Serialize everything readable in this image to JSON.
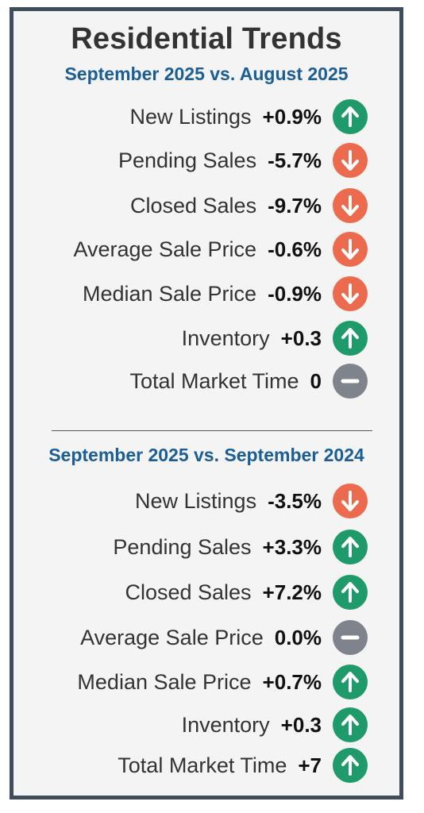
{
  "title": "Residential Trends",
  "colors": {
    "border": "#3f4d5c",
    "subtitle": "#1b5e96",
    "up": "#1f9a6b",
    "down": "#ec6b4f",
    "flat": "#7f838c"
  },
  "section1": {
    "subtitle": "September 2025 vs. August 2025",
    "rows": [
      {
        "label": "New Listings",
        "value": "+0.9%",
        "trend": "up",
        "icon": "arrow-up-icon"
      },
      {
        "label": "Pending Sales",
        "value": "-5.7%",
        "trend": "down",
        "icon": "arrow-down-icon"
      },
      {
        "label": "Closed Sales",
        "value": "-9.7%",
        "trend": "down",
        "icon": "arrow-down-icon"
      },
      {
        "label": "Average Sale Price",
        "value": "-0.6%",
        "trend": "down",
        "icon": "arrow-down-icon"
      },
      {
        "label": "Median Sale Price",
        "value": "-0.9%",
        "trend": "down",
        "icon": "arrow-down-icon"
      },
      {
        "label": "Inventory",
        "value": "+0.3",
        "trend": "up",
        "icon": "arrow-up-icon"
      },
      {
        "label": "Total Market Time",
        "value": "0",
        "trend": "flat",
        "icon": "minus-icon"
      }
    ]
  },
  "section2": {
    "subtitle": "September 2025 vs. September 2024",
    "rows": [
      {
        "label": "New Listings",
        "value": "-3.5%",
        "trend": "down",
        "icon": "arrow-down-icon"
      },
      {
        "label": "Pending Sales",
        "value": "+3.3%",
        "trend": "up",
        "icon": "arrow-up-icon"
      },
      {
        "label": "Closed Sales",
        "value": "+7.2%",
        "trend": "up",
        "icon": "arrow-up-icon"
      },
      {
        "label": "Average Sale Price",
        "value": "0.0%",
        "trend": "flat",
        "icon": "minus-icon"
      },
      {
        "label": "Median Sale Price",
        "value": "+0.7%",
        "trend": "up",
        "icon": "arrow-up-icon"
      },
      {
        "label": "Inventory",
        "value": "+0.3",
        "trend": "up",
        "icon": "arrow-up-icon"
      },
      {
        "label": "Total Market Time",
        "value": "+7",
        "trend": "up",
        "icon": "arrow-up-icon"
      }
    ]
  }
}
